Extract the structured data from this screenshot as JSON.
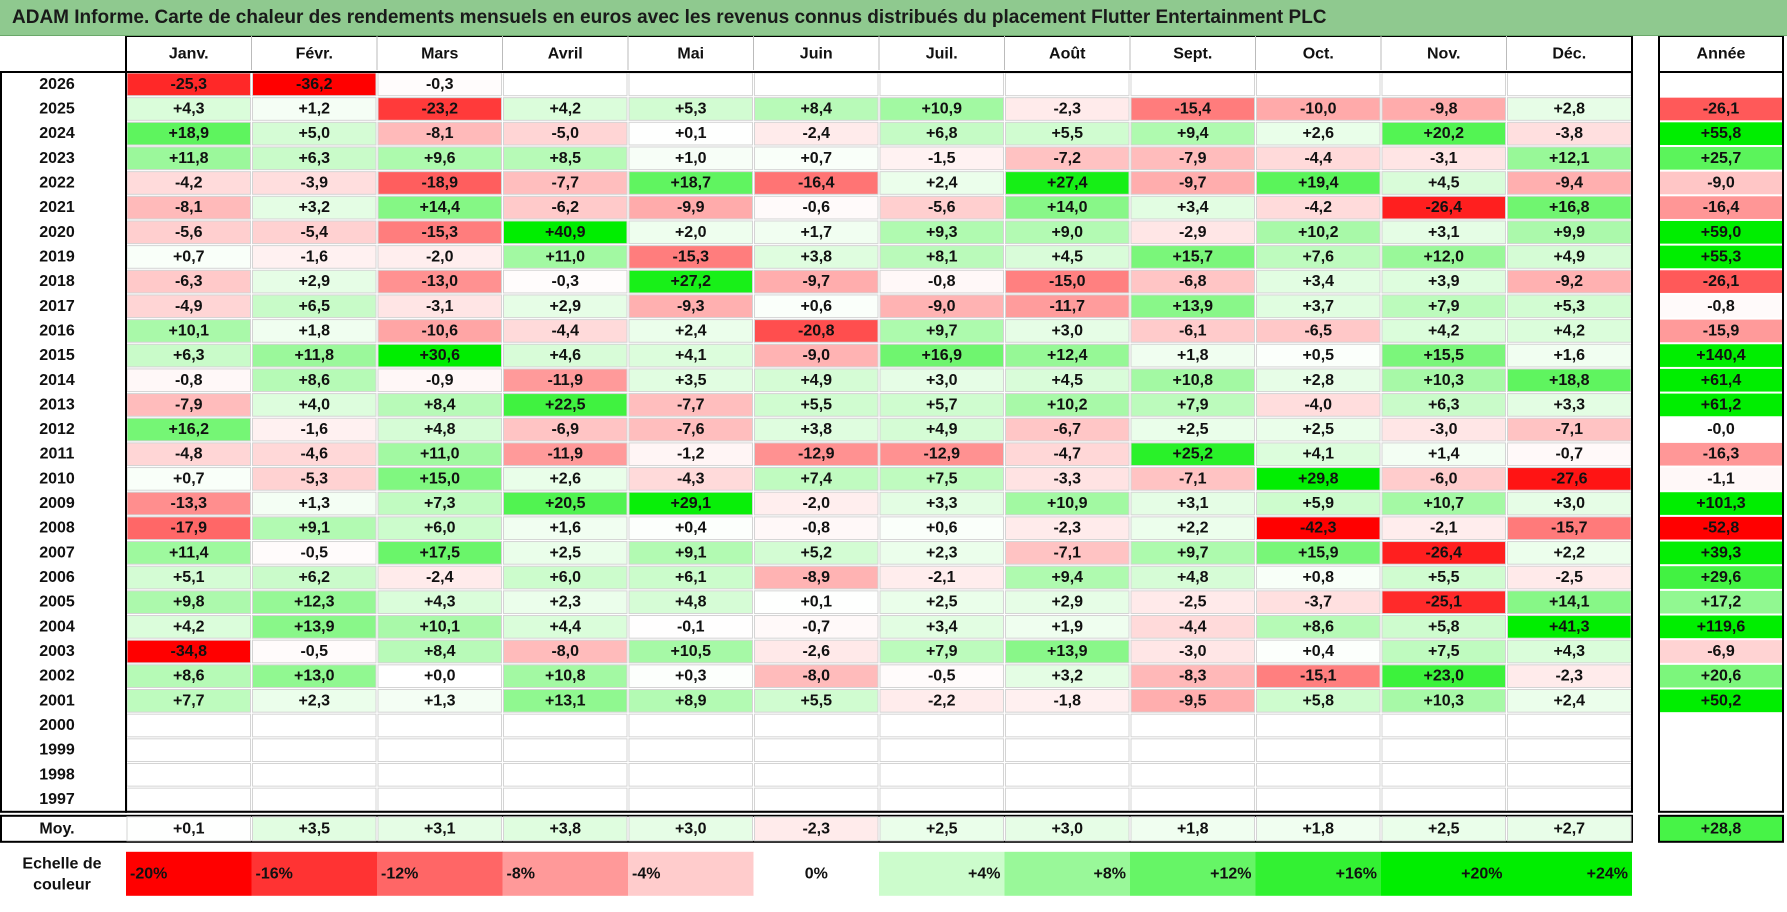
{
  "title": "ADAM Informe. Carte de chaleur des rendements mensuels en euros avec les revenus connus distribués du placement Flutter Entertainment PLC",
  "chart_data": {
    "type": "heatmap",
    "months": [
      "Janv.",
      "Févr.",
      "Mars",
      "Avril",
      "Mai",
      "Juin",
      "Juil.",
      "Août",
      "Sept.",
      "Oct.",
      "Nov.",
      "Déc."
    ],
    "year_header": "Année",
    "rows": [
      {
        "year": "2026",
        "values": [
          "-25,3",
          "-36,2",
          "-0,3",
          "",
          "",
          "",
          "",
          "",
          "",
          "",
          "",
          ""
        ],
        "annual": ""
      },
      {
        "year": "2025",
        "values": [
          "+4,3",
          "+1,2",
          "-23,2",
          "+4,2",
          "+5,3",
          "+8,4",
          "+10,9",
          "-2,3",
          "-15,4",
          "-10,0",
          "-9,8",
          "+2,8"
        ],
        "annual": "-26,1"
      },
      {
        "year": "2024",
        "values": [
          "+18,9",
          "+5,0",
          "-8,1",
          "-5,0",
          "+0,1",
          "-2,4",
          "+6,8",
          "+5,5",
          "+9,4",
          "+2,6",
          "+20,2",
          "-3,8"
        ],
        "annual": "+55,8"
      },
      {
        "year": "2023",
        "values": [
          "+11,8",
          "+6,3",
          "+9,6",
          "+8,5",
          "+1,0",
          "+0,7",
          "-1,5",
          "-7,2",
          "-7,9",
          "-4,4",
          "-3,1",
          "+12,1"
        ],
        "annual": "+25,7"
      },
      {
        "year": "2022",
        "values": [
          "-4,2",
          "-3,9",
          "-18,9",
          "-7,7",
          "+18,7",
          "-16,4",
          "+2,4",
          "+27,4",
          "-9,7",
          "+19,4",
          "+4,5",
          "-9,4"
        ],
        "annual": "-9,0"
      },
      {
        "year": "2021",
        "values": [
          "-8,1",
          "+3,2",
          "+14,4",
          "-6,2",
          "-9,9",
          "-0,6",
          "-5,6",
          "+14,0",
          "+3,4",
          "-4,2",
          "-26,4",
          "+16,8"
        ],
        "annual": "-16,4"
      },
      {
        "year": "2020",
        "values": [
          "-5,6",
          "-5,4",
          "-15,3",
          "+40,9",
          "+2,0",
          "+1,7",
          "+9,3",
          "+9,0",
          "-2,9",
          "+10,2",
          "+3,1",
          "+9,9"
        ],
        "annual": "+59,0"
      },
      {
        "year": "2019",
        "values": [
          "+0,7",
          "-1,6",
          "-2,0",
          "+11,0",
          "-15,3",
          "+3,8",
          "+8,1",
          "+4,5",
          "+15,7",
          "+7,6",
          "+12,0",
          "+4,9"
        ],
        "annual": "+55,3"
      },
      {
        "year": "2018",
        "values": [
          "-6,3",
          "+2,9",
          "-13,0",
          "-0,3",
          "+27,2",
          "-9,7",
          "-0,8",
          "-15,0",
          "-6,8",
          "+3,4",
          "+3,9",
          "-9,2"
        ],
        "annual": "-26,1"
      },
      {
        "year": "2017",
        "values": [
          "-4,9",
          "+6,5",
          "-3,1",
          "+2,9",
          "-9,3",
          "+0,6",
          "-9,0",
          "-11,7",
          "+13,9",
          "+3,7",
          "+7,9",
          "+5,3"
        ],
        "annual": "-0,8"
      },
      {
        "year": "2016",
        "values": [
          "+10,1",
          "+1,8",
          "-10,6",
          "-4,4",
          "+2,4",
          "-20,8",
          "+9,7",
          "+3,0",
          "-6,1",
          "-6,5",
          "+4,2",
          "+4,2"
        ],
        "annual": "-15,9"
      },
      {
        "year": "2015",
        "values": [
          "+6,3",
          "+11,8",
          "+30,6",
          "+4,6",
          "+4,1",
          "-9,0",
          "+16,9",
          "+12,4",
          "+1,8",
          "+0,5",
          "+15,5",
          "+1,6"
        ],
        "annual": "+140,4"
      },
      {
        "year": "2014",
        "values": [
          "-0,8",
          "+8,6",
          "-0,9",
          "-11,9",
          "+3,5",
          "+4,9",
          "+3,0",
          "+4,5",
          "+10,8",
          "+2,8",
          "+10,3",
          "+18,8"
        ],
        "annual": "+61,4"
      },
      {
        "year": "2013",
        "values": [
          "-7,9",
          "+4,0",
          "+8,4",
          "+22,5",
          "-7,7",
          "+5,5",
          "+5,7",
          "+10,2",
          "+7,9",
          "-4,0",
          "+6,3",
          "+3,3"
        ],
        "annual": "+61,2"
      },
      {
        "year": "2012",
        "values": [
          "+16,2",
          "-1,6",
          "+4,8",
          "-6,9",
          "-7,6",
          "+3,8",
          "+4,9",
          "-6,7",
          "+2,5",
          "+2,5",
          "-3,0",
          "-7,1"
        ],
        "annual": "-0,0"
      },
      {
        "year": "2011",
        "values": [
          "-4,8",
          "-4,6",
          "+11,0",
          "-11,9",
          "-1,2",
          "-12,9",
          "-12,9",
          "-4,7",
          "+25,2",
          "+4,1",
          "+1,4",
          "-0,7"
        ],
        "annual": "-16,3"
      },
      {
        "year": "2010",
        "values": [
          "+0,7",
          "-5,3",
          "+15,0",
          "+2,6",
          "-4,3",
          "+7,4",
          "+7,5",
          "-3,3",
          "-7,1",
          "+29,8",
          "-6,0",
          "-27,6"
        ],
        "annual": "-1,1"
      },
      {
        "year": "2009",
        "values": [
          "-13,3",
          "+1,3",
          "+7,3",
          "+20,5",
          "+29,1",
          "-2,0",
          "+3,3",
          "+10,9",
          "+3,1",
          "+5,9",
          "+10,7",
          "+3,0"
        ],
        "annual": "+101,3"
      },
      {
        "year": "2008",
        "values": [
          "-17,9",
          "+9,1",
          "+6,0",
          "+1,6",
          "+0,4",
          "-0,8",
          "+0,6",
          "-2,3",
          "+2,2",
          "-42,3",
          "-2,1",
          "-15,7"
        ],
        "annual": "-52,8"
      },
      {
        "year": "2007",
        "values": [
          "+11,4",
          "-0,5",
          "+17,5",
          "+2,5",
          "+9,1",
          "+5,2",
          "+2,3",
          "-7,1",
          "+9,7",
          "+15,9",
          "-26,4",
          "+2,2"
        ],
        "annual": "+39,3"
      },
      {
        "year": "2006",
        "values": [
          "+5,1",
          "+6,2",
          "-2,4",
          "+6,0",
          "+6,1",
          "-8,9",
          "-2,1",
          "+9,4",
          "+4,8",
          "+0,8",
          "+5,5",
          "-2,5"
        ],
        "annual": "+29,6"
      },
      {
        "year": "2005",
        "values": [
          "+9,8",
          "+12,3",
          "+4,3",
          "+2,3",
          "+4,8",
          "+0,1",
          "+2,5",
          "+2,9",
          "-2,5",
          "-3,7",
          "-25,1",
          "+14,1"
        ],
        "annual": "+17,2"
      },
      {
        "year": "2004",
        "values": [
          "+4,2",
          "+13,9",
          "+10,1",
          "+4,4",
          "-0,1",
          "-0,7",
          "+3,4",
          "+1,9",
          "-4,4",
          "+8,6",
          "+5,8",
          "+41,3"
        ],
        "annual": "+119,6"
      },
      {
        "year": "2003",
        "values": [
          "-34,8",
          "-0,5",
          "+8,4",
          "-8,0",
          "+10,5",
          "-2,6",
          "+7,9",
          "+13,9",
          "-3,0",
          "+0,4",
          "+7,5",
          "+4,3"
        ],
        "annual": "-6,9"
      },
      {
        "year": "2002",
        "values": [
          "+8,6",
          "+13,0",
          "+0,0",
          "+10,8",
          "+0,3",
          "-8,0",
          "-0,5",
          "+3,2",
          "-8,3",
          "-15,1",
          "+23,0",
          "-2,3"
        ],
        "annual": "+20,6"
      },
      {
        "year": "2001",
        "values": [
          "+7,7",
          "+2,3",
          "+1,3",
          "+13,1",
          "+8,9",
          "+5,5",
          "-2,2",
          "-1,8",
          "-9,5",
          "+5,8",
          "+10,3",
          "+2,4"
        ],
        "annual": "+50,2"
      },
      {
        "year": "2000",
        "values": [
          "",
          "",
          "",
          "",
          "",
          "",
          "",
          "",
          "",
          "",
          "",
          ""
        ],
        "annual": ""
      },
      {
        "year": "1999",
        "values": [
          "",
          "",
          "",
          "",
          "",
          "",
          "",
          "",
          "",
          "",
          "",
          ""
        ],
        "annual": ""
      },
      {
        "year": "1998",
        "values": [
          "",
          "",
          "",
          "",
          "",
          "",
          "",
          "",
          "",
          "",
          "",
          ""
        ],
        "annual": ""
      },
      {
        "year": "1997",
        "values": [
          "",
          "",
          "",
          "",
          "",
          "",
          "",
          "",
          "",
          "",
          "",
          ""
        ],
        "annual": ""
      }
    ],
    "average": {
      "label": "Moy.",
      "values": [
        "+0,1",
        "+3,5",
        "+3,1",
        "+3,8",
        "+3,0",
        "-2,3",
        "+2,5",
        "+3,0",
        "+1,8",
        "+1,8",
        "+2,5",
        "+2,7"
      ],
      "annual": "+28,8"
    },
    "scale": {
      "label_line1": "Echelle de",
      "label_line2": "couleur",
      "steps": [
        "-20%",
        "-16%",
        "-12%",
        "-8%",
        "-4%",
        "0%",
        "+4%",
        "+8%",
        "+12%",
        "+16%",
        "+20%",
        "+24%"
      ],
      "step_values": [
        -20,
        -16,
        -12,
        -8,
        -4,
        0,
        4,
        8,
        12,
        16,
        20,
        24
      ]
    },
    "colors": {
      "neg_max": "#ff0000",
      "pos_max": "#00ee00",
      "neutral": "#ffffff",
      "title_bg": "#8fc98f"
    }
  }
}
